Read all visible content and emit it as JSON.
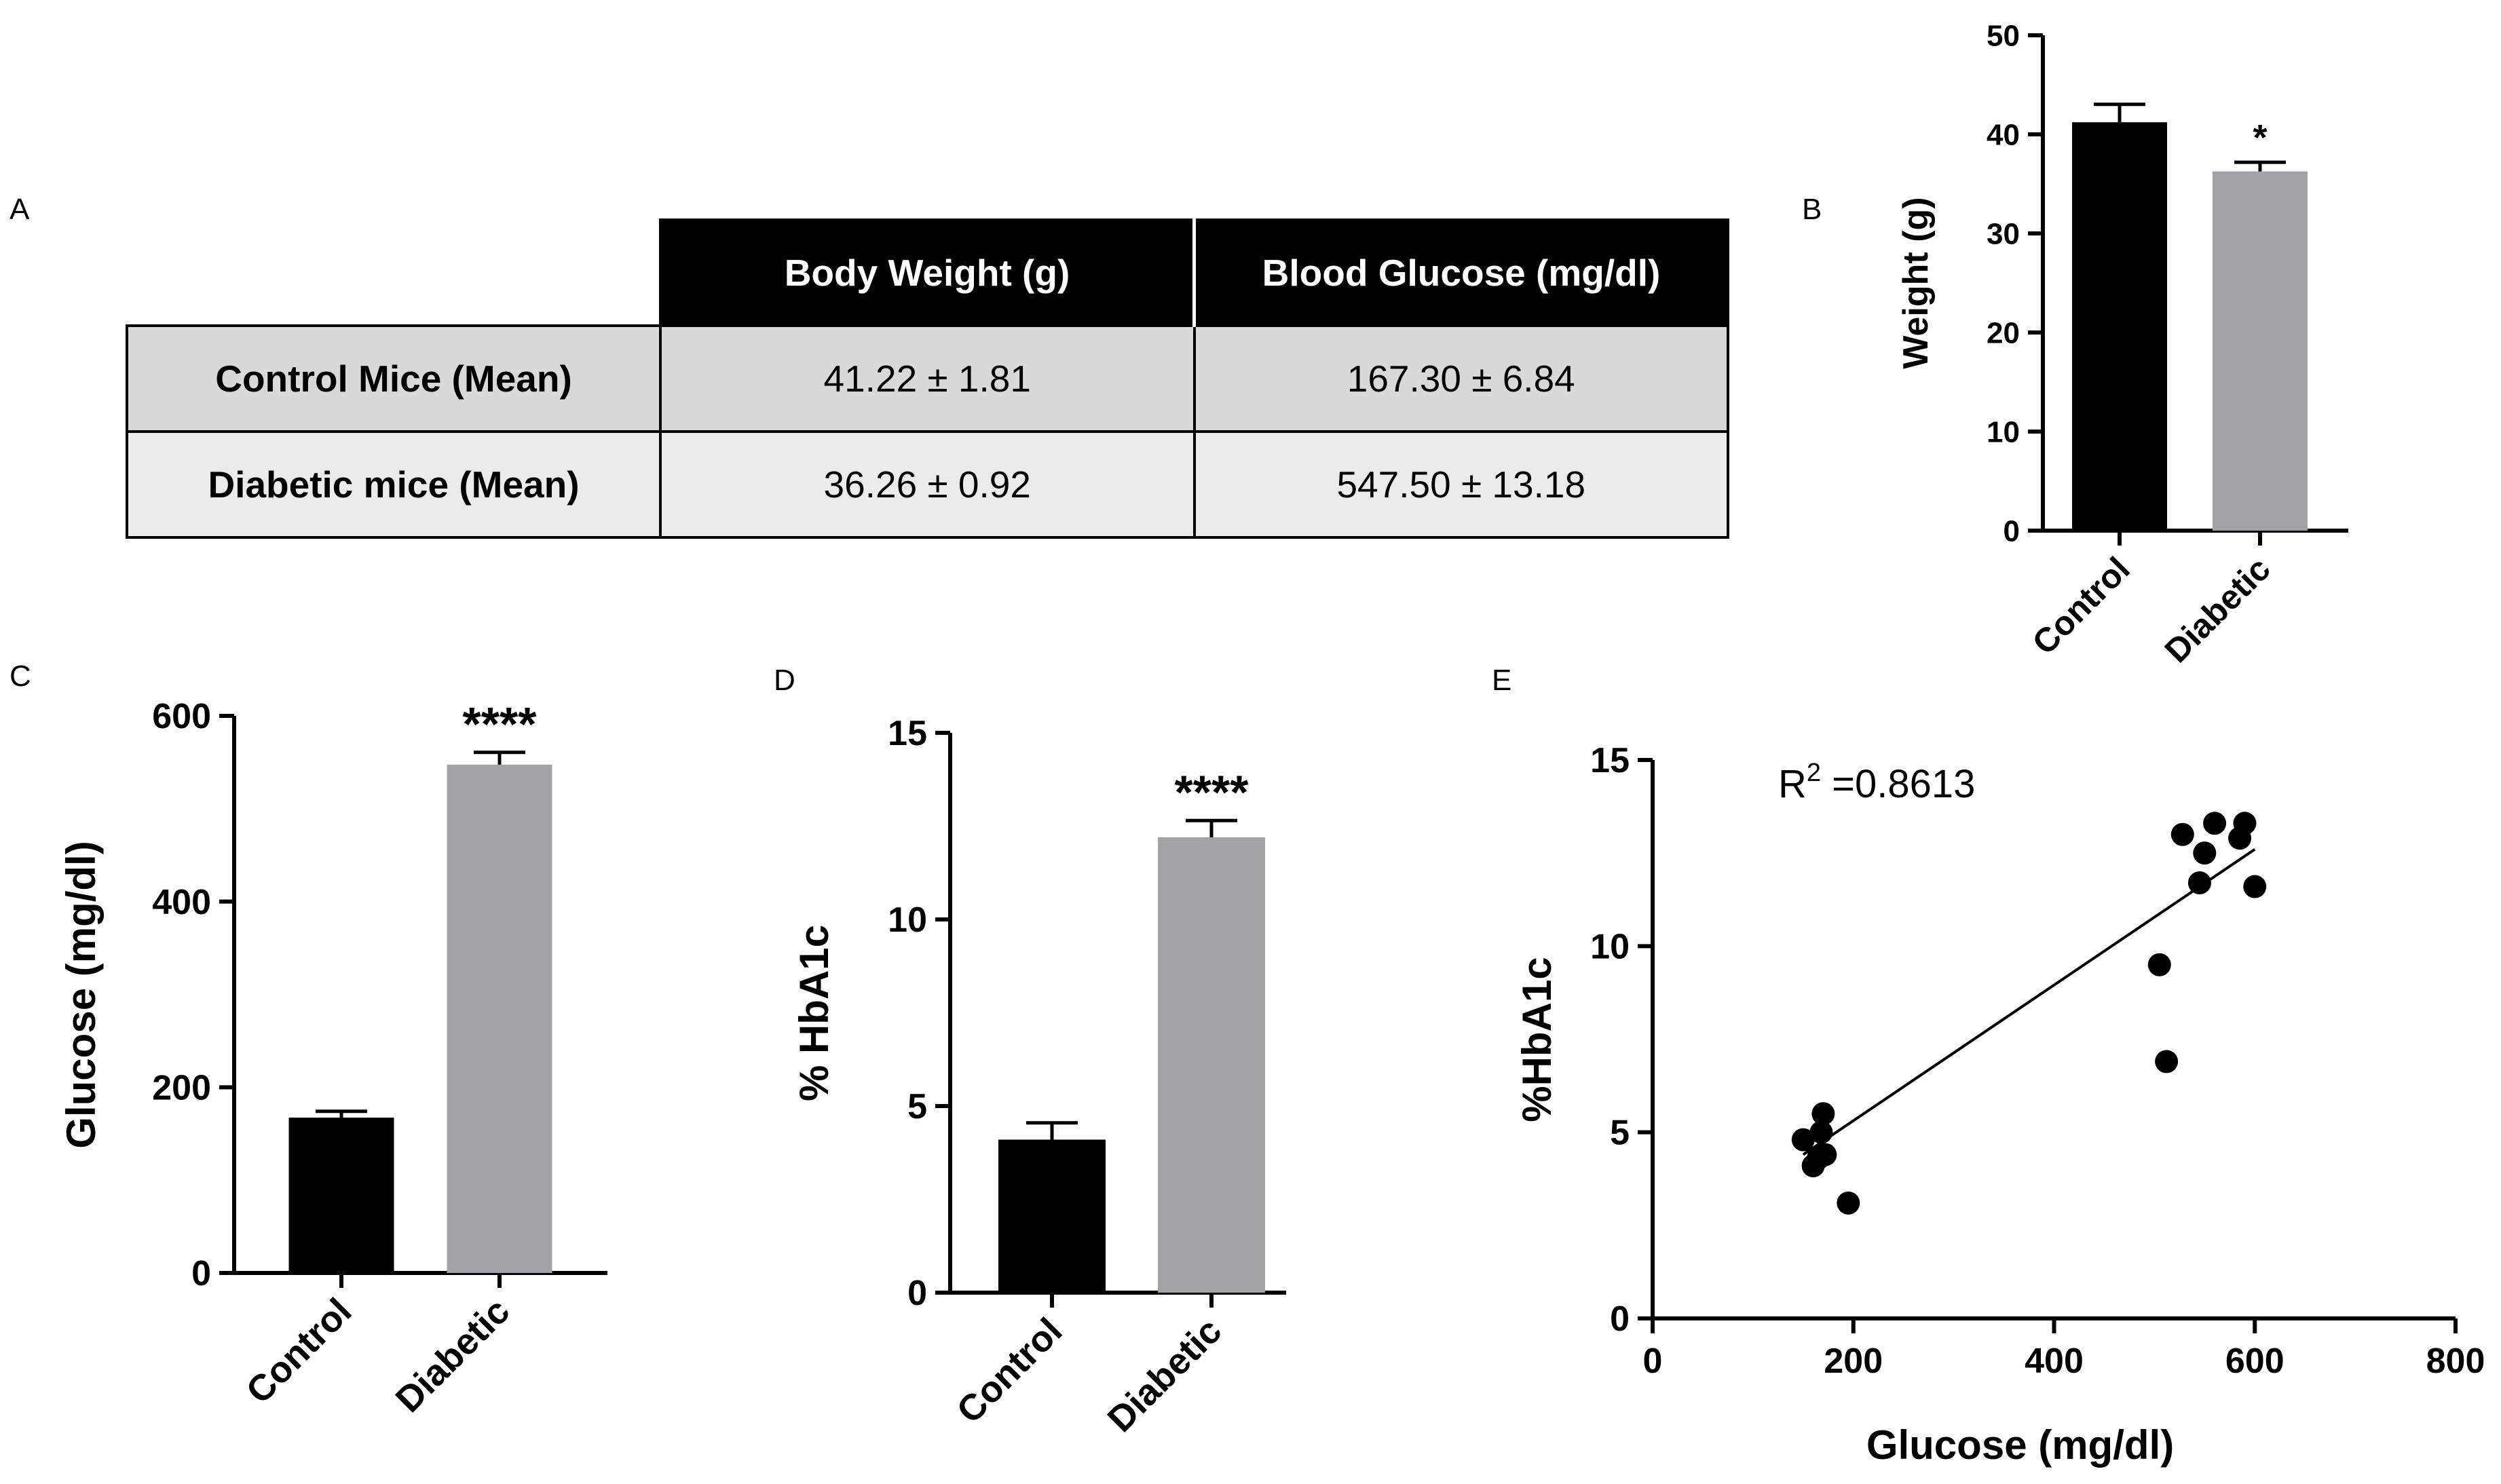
{
  "panel_labels": {
    "a": "A",
    "b": "B",
    "c": "C",
    "d": "D",
    "e": "E"
  },
  "table": {
    "columns": [
      "Body Weight (g)",
      "Blood Glucose (mg/dl)"
    ],
    "rows": [
      {
        "label": "Control Mice (Mean)",
        "weight": "41.22 ± 1.81",
        "glucose": "167.30 ± 6.84"
      },
      {
        "label": "Diabetic mice (Mean)",
        "weight": "36.26 ± 0.92",
        "glucose": "547.50 ± 13.18"
      }
    ]
  },
  "colors": {
    "control": "#000000",
    "diabetic": "#a3a2a7",
    "axis": "#000000"
  },
  "chart_data": [
    {
      "id": "B",
      "type": "bar",
      "categories": [
        "Control",
        "Diabetic"
      ],
      "values": [
        41.22,
        36.26
      ],
      "errors": [
        1.81,
        0.92
      ],
      "significance": [
        "",
        "*"
      ],
      "ylabel": "Weight (g)",
      "xlabel": "",
      "ylim": [
        0,
        50
      ],
      "yticks": [
        0,
        10,
        20,
        30,
        40,
        50
      ]
    },
    {
      "id": "C",
      "type": "bar",
      "categories": [
        "Control",
        "Diabetic"
      ],
      "values": [
        167.3,
        547.5
      ],
      "errors": [
        6.84,
        13.18
      ],
      "significance": [
        "",
        "****"
      ],
      "ylabel": "Glucose (mg/dl)",
      "xlabel": "",
      "ylim": [
        0,
        600
      ],
      "yticks": [
        0,
        200,
        400,
        600
      ]
    },
    {
      "id": "D",
      "type": "bar",
      "categories": [
        "Control",
        "Diabetic"
      ],
      "values": [
        4.1,
        12.2
      ],
      "errors": [
        0.45,
        0.45
      ],
      "significance": [
        "",
        "****"
      ],
      "ylabel": "% HbA1c",
      "xlabel": "",
      "ylim": [
        0,
        15
      ],
      "yticks": [
        0,
        5,
        10,
        15
      ]
    },
    {
      "id": "E",
      "type": "scatter",
      "x": [
        150,
        160,
        165,
        168,
        170,
        172,
        195,
        505,
        512,
        528,
        545,
        550,
        560,
        585,
        590,
        600
      ],
      "y": [
        4.8,
        4.1,
        4.3,
        5.0,
        5.5,
        4.4,
        3.1,
        9.5,
        6.9,
        13.0,
        11.7,
        12.5,
        13.3,
        12.9,
        13.3,
        11.6
      ],
      "fit_line": {
        "x": [
          150,
          600
        ],
        "y": [
          4.4,
          12.6
        ]
      },
      "annotation": {
        "prefix": "R",
        "superscript": "2",
        "value": " =0.8613"
      },
      "xlabel": "Glucose (mg/dl)",
      "ylabel": "%HbA1c",
      "xlim": [
        0,
        800
      ],
      "ylim": [
        0,
        15
      ],
      "xticks": [
        0,
        200,
        400,
        600,
        800
      ],
      "yticks": [
        0,
        5,
        10,
        15
      ]
    }
  ]
}
